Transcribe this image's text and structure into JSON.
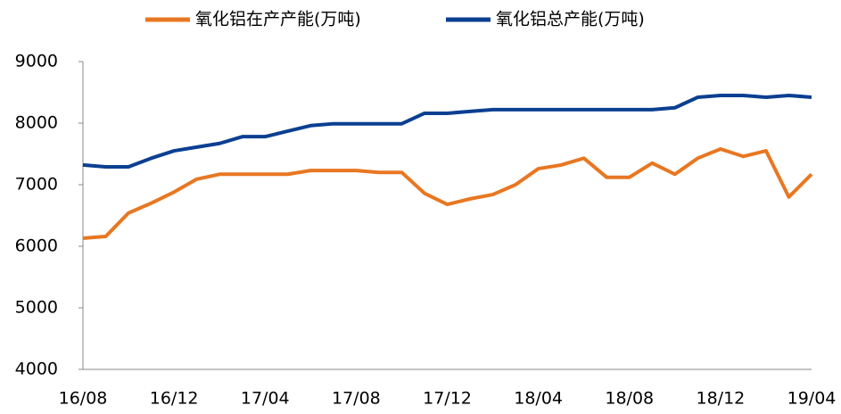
{
  "chart_data": {
    "type": "line",
    "categories": [
      "16/08",
      null,
      null,
      null,
      "16/12",
      null,
      null,
      null,
      "17/04",
      null,
      null,
      null,
      "17/08",
      null,
      null,
      null,
      "17/12",
      null,
      null,
      null,
      "18/04",
      null,
      null,
      null,
      "18/08",
      null,
      null,
      null,
      "18/12",
      null,
      null,
      null,
      "19/04"
    ],
    "series": [
      {
        "name": "氧化铝在产产能(万吨)",
        "color": "#e87722",
        "values": [
          6130,
          6160,
          6540,
          6700,
          6880,
          7090,
          7170,
          7170,
          7170,
          7170,
          7230,
          7230,
          7230,
          7200,
          7200,
          6860,
          6680,
          6770,
          6840,
          7000,
          7260,
          7320,
          7430,
          7120,
          7120,
          7350,
          7170,
          7430,
          7580,
          7460,
          7550,
          6800,
          7170
        ]
      },
      {
        "name": "氧化铝总产能(万吨)",
        "color": "#0b3f91",
        "values": [
          7320,
          7290,
          7290,
          7430,
          7550,
          7610,
          7670,
          7780,
          7780,
          7870,
          7960,
          7990,
          7990,
          7990,
          7990,
          8160,
          8160,
          8190,
          8220,
          8220,
          8220,
          8220,
          8220,
          8220,
          8220,
          8220,
          8250,
          8420,
          8450,
          8450,
          8420,
          8450,
          8420
        ]
      }
    ],
    "ylim": [
      4000,
      9000
    ],
    "yticks": [
      4000,
      5000,
      6000,
      7000,
      8000,
      9000
    ],
    "grid": false,
    "legend": "top"
  }
}
